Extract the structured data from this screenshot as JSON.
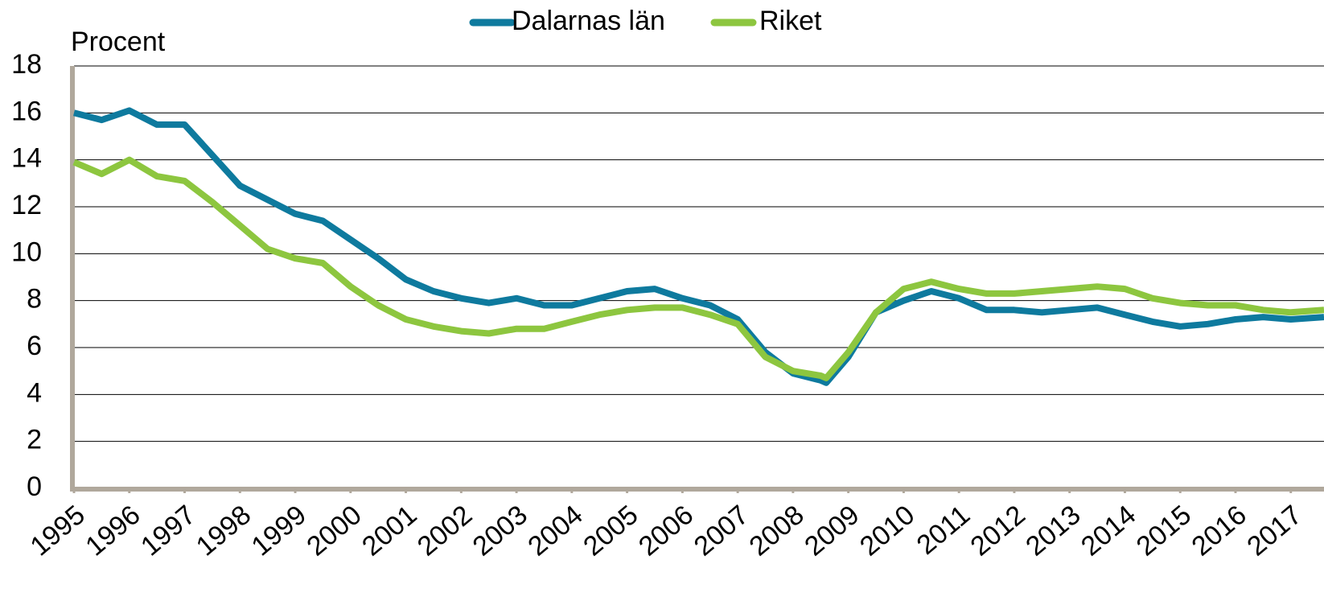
{
  "chart_data": {
    "type": "line",
    "legend": "top",
    "y_label": "Procent",
    "x": [
      1995,
      1995.5,
      1996,
      1996.5,
      1997,
      1997.5,
      1998,
      1998.5,
      1999,
      1999.5,
      2000,
      2000.5,
      2001,
      2001.5,
      2002,
      2002.5,
      2003,
      2003.5,
      2004,
      2004.5,
      2005,
      2005.5,
      2006,
      2006.5,
      2007,
      2007.5,
      2008,
      2008.5,
      2008.6,
      2009,
      2009.5,
      2010,
      2010.5,
      2011,
      2011.5,
      2012,
      2012.5,
      2013,
      2013.5,
      2014,
      2014.5,
      2015,
      2015.5,
      2016,
      2016.5,
      2017,
      2017.6
    ],
    "series": [
      {
        "name": "Dalarnas län",
        "color": "#0e7a9e",
        "values": [
          16.0,
          15.7,
          16.1,
          15.5,
          15.5,
          14.2,
          12.9,
          12.3,
          11.7,
          11.4,
          10.6,
          9.8,
          8.9,
          8.4,
          8.1,
          7.9,
          8.1,
          7.8,
          7.8,
          8.1,
          8.4,
          8.5,
          8.1,
          7.8,
          7.2,
          5.8,
          4.9,
          4.6,
          4.5,
          5.6,
          7.5,
          8.0,
          8.4,
          8.1,
          7.6,
          7.6,
          7.5,
          7.6,
          7.7,
          7.4,
          7.1,
          6.9,
          7.0,
          7.2,
          7.3,
          7.2,
          7.3
        ]
      },
      {
        "name": "Riket",
        "color": "#8dc63f",
        "values": [
          13.9,
          13.4,
          14.0,
          13.3,
          13.1,
          12.2,
          11.2,
          10.2,
          9.8,
          9.6,
          8.6,
          7.8,
          7.2,
          6.9,
          6.7,
          6.6,
          6.8,
          6.8,
          7.1,
          7.4,
          7.6,
          7.7,
          7.7,
          7.4,
          7.0,
          5.6,
          5.0,
          4.8,
          4.7,
          5.8,
          7.5,
          8.5,
          8.8,
          8.5,
          8.3,
          8.3,
          8.4,
          8.5,
          8.6,
          8.5,
          8.1,
          7.9,
          7.8,
          7.8,
          7.6,
          7.5,
          7.6
        ]
      }
    ],
    "xlim": [
      1995,
      2017.6
    ],
    "xticks": [
      1995,
      1996,
      1997,
      1998,
      1999,
      2000,
      2001,
      2002,
      2003,
      2004,
      2005,
      2006,
      2007,
      2008,
      2009,
      2010,
      2011,
      2012,
      2013,
      2014,
      2015,
      2016,
      2017
    ],
    "ylim": [
      0,
      18
    ],
    "yticks": [
      0,
      2,
      4,
      6,
      8,
      10,
      12,
      14,
      16,
      18
    ],
    "grid": true
  }
}
